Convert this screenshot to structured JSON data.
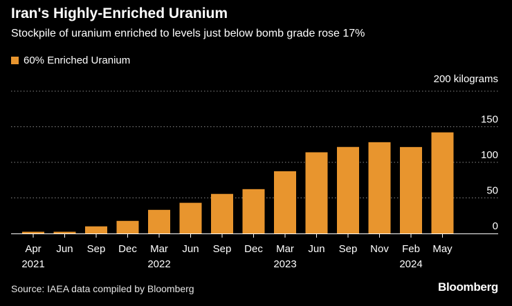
{
  "title": "Iran's Highly-Enriched Uranium",
  "subtitle": "Stockpile of uranium enriched to levels just below bomb grade rose 17%",
  "source": "Source: IAEA data compiled by Bloomberg",
  "brand": "Bloomberg",
  "colors": {
    "background": "#000000",
    "bar": "#e8952e",
    "grid": "#8a8a8a",
    "axis": "#ffffff"
  },
  "chart_data": {
    "type": "bar",
    "categories": [
      "Apr 2021",
      "Jun",
      "Sep",
      "Dec",
      "Mar 2022",
      "Jun",
      "Sep",
      "Dec",
      "Mar 2023",
      "Jun",
      "Sep",
      "Nov",
      "Feb 2024",
      "May"
    ],
    "tick_labels": [
      [
        "Apr",
        "2021"
      ],
      [
        "Jun",
        ""
      ],
      [
        "Sep",
        ""
      ],
      [
        "Dec",
        ""
      ],
      [
        "Mar",
        "2022"
      ],
      [
        "Jun",
        ""
      ],
      [
        "Sep",
        ""
      ],
      [
        "Dec",
        ""
      ],
      [
        "Mar",
        "2023"
      ],
      [
        "Jun",
        ""
      ],
      [
        "Sep",
        ""
      ],
      [
        "Nov",
        ""
      ],
      [
        "Feb",
        "2024"
      ],
      [
        "May",
        ""
      ]
    ],
    "series": [
      {
        "name": "60% Enriched Uranium",
        "values": [
          2.4,
          2.4,
          10.0,
          17.7,
          33.2,
          43.1,
          55.6,
          62.3,
          87.5,
          114.1,
          121.6,
          128.3,
          121.5,
          142.1
        ]
      }
    ],
    "ylabel": "kilograms",
    "unit_label": "200 kilograms",
    "ylim": [
      0,
      200
    ],
    "y_ticks": [
      0,
      50,
      100,
      150
    ],
    "grid": true,
    "legend": "top-left"
  }
}
